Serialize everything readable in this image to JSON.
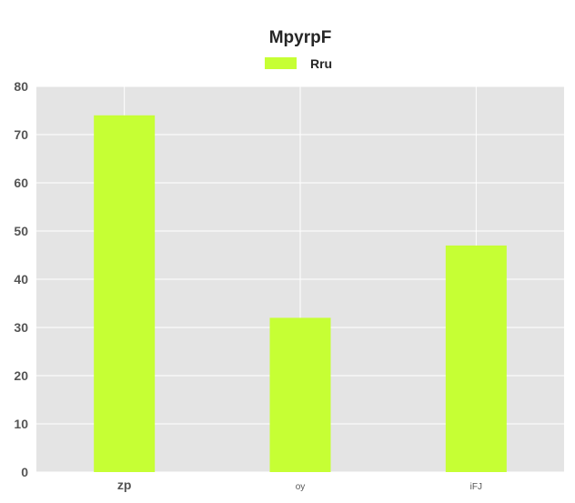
{
  "chart_data": {
    "type": "bar",
    "title": "MpyrpF",
    "categories": [
      "zp",
      "oy",
      "iFJ"
    ],
    "series": [
      {
        "name": "Rru",
        "values": [
          74,
          32,
          47
        ],
        "color": "#c6ff34"
      }
    ],
    "ylim": [
      0,
      80
    ],
    "yticks": [
      0,
      10,
      20,
      30,
      40,
      50,
      60,
      70,
      80
    ],
    "xlabel": "",
    "ylabel": "",
    "grid": true,
    "legend": "top-center",
    "background_color": "#e4e4e4",
    "grid_color": "#ffffff"
  }
}
